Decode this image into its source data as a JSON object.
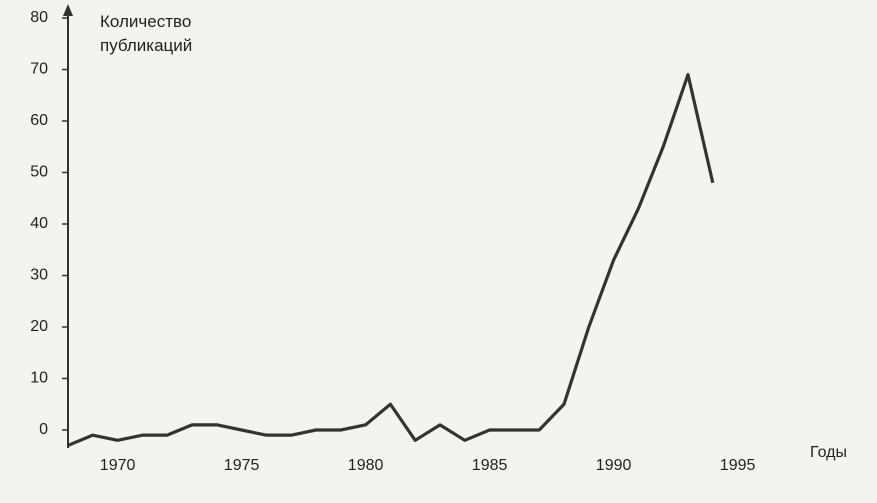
{
  "chart_data": {
    "type": "line",
    "y_label": "Количество публикаций",
    "x_label": "Годы",
    "x": [
      1968,
      1969,
      1970,
      1971,
      1972,
      1973,
      1974,
      1975,
      1976,
      1977,
      1978,
      1979,
      1980,
      1981,
      1982,
      1983,
      1984,
      1985,
      1986,
      1987,
      1988,
      1989,
      1990,
      1991,
      1992,
      1993,
      1994
    ],
    "series": [
      {
        "color": "#333333",
        "values": [
          -3,
          -1,
          -2,
          -1,
          -1,
          1,
          1,
          0,
          -1,
          -1,
          0,
          0,
          1,
          5,
          -2,
          1,
          -2,
          0,
          0,
          0,
          5,
          20,
          33,
          43,
          55,
          69,
          48
        ]
      }
    ],
    "xlim": [
      1968,
      1998
    ],
    "xticks": [
      1970,
      1975,
      1980,
      1985,
      1990,
      1995
    ],
    "ylim": [
      -3,
      80
    ],
    "yticks": [
      0,
      10,
      20,
      30,
      40,
      50,
      60,
      70,
      80
    ],
    "grid": false
  }
}
